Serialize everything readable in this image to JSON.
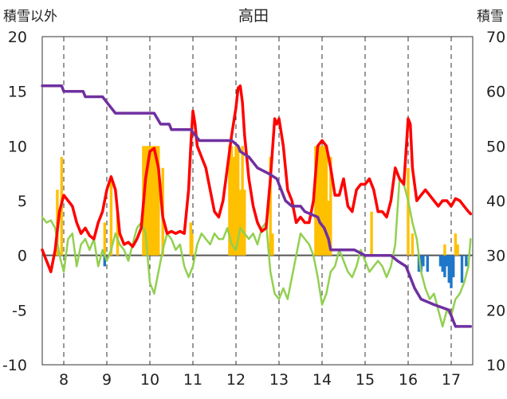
{
  "chart_data": {
    "type": "bar+line",
    "title": "高田",
    "left_axis_label": "積雪以外",
    "right_axis_label": "積雪",
    "left_ylim": [
      -10,
      20
    ],
    "left_ticks": [
      "-10",
      "-5",
      "0",
      "5",
      "10",
      "15",
      "20"
    ],
    "right_ylim": [
      10,
      70
    ],
    "right_ticks": [
      "10",
      "20",
      "30",
      "40",
      "50",
      "60",
      "70"
    ],
    "x_range": [
      7.5,
      17.5
    ],
    "x_ticks": [
      "8",
      "9",
      "10",
      "11",
      "12",
      "13",
      "14",
      "15",
      "16",
      "17"
    ],
    "grid": "vertical dashed at each day, horizontal reference at 0",
    "colors": {
      "snowfall_bar": "#FFC000",
      "snow_decrease_bar": "#1F77C8",
      "temp_max_line": "#FF0000",
      "temp_min_line": "#92D050",
      "snow_depth_line": "#7030A0"
    },
    "snowfall_bars": [
      {
        "x": 7.95,
        "v": 9
      },
      {
        "x": 7.85,
        "v": 6
      },
      {
        "x": 8.95,
        "v": 3
      },
      {
        "x": 9.1,
        "v": 7
      },
      {
        "x": 9.25,
        "v": 4
      },
      {
        "x": 9.85,
        "v": 10
      },
      {
        "x": 9.9,
        "v": 10
      },
      {
        "x": 9.95,
        "v": 10
      },
      {
        "x": 10.0,
        "v": 10
      },
      {
        "x": 10.05,
        "v": 10
      },
      {
        "x": 10.1,
        "v": 10
      },
      {
        "x": 10.15,
        "v": 10
      },
      {
        "x": 10.2,
        "v": 10
      },
      {
        "x": 10.3,
        "v": 8
      },
      {
        "x": 10.95,
        "v": 3
      },
      {
        "x": 10.98,
        "v": 2
      },
      {
        "x": 11.85,
        "v": 10
      },
      {
        "x": 11.9,
        "v": 10
      },
      {
        "x": 11.95,
        "v": 9
      },
      {
        "x": 12.0,
        "v": 10
      },
      {
        "x": 12.05,
        "v": 10
      },
      {
        "x": 12.1,
        "v": 6
      },
      {
        "x": 12.15,
        "v": 10
      },
      {
        "x": 12.2,
        "v": 6
      },
      {
        "x": 12.8,
        "v": 9
      },
      {
        "x": 12.85,
        "v": 2
      },
      {
        "x": 13.85,
        "v": 10
      },
      {
        "x": 13.9,
        "v": 10
      },
      {
        "x": 13.95,
        "v": 10
      },
      {
        "x": 14.0,
        "v": 10
      },
      {
        "x": 14.05,
        "v": 10
      },
      {
        "x": 14.1,
        "v": 10
      },
      {
        "x": 14.15,
        "v": 5
      },
      {
        "x": 14.2,
        "v": 9
      },
      {
        "x": 15.15,
        "v": 4
      },
      {
        "x": 16.0,
        "v": 8
      },
      {
        "x": 16.1,
        "v": 2
      },
      {
        "x": 16.85,
        "v": 1
      },
      {
        "x": 17.1,
        "v": 2
      },
      {
        "x": 17.15,
        "v": 1
      }
    ],
    "snow_decrease_bars": [
      {
        "x": 8.95,
        "v": -1
      },
      {
        "x": 16.25,
        "v": -1.5
      },
      {
        "x": 16.3,
        "v": -1.5
      },
      {
        "x": 16.35,
        "v": -1
      },
      {
        "x": 16.45,
        "v": -1.5
      },
      {
        "x": 16.75,
        "v": -1
      },
      {
        "x": 16.8,
        "v": -1.5
      },
      {
        "x": 16.85,
        "v": -2
      },
      {
        "x": 16.9,
        "v": -1
      },
      {
        "x": 16.95,
        "v": -2.5
      },
      {
        "x": 17.0,
        "v": -3
      },
      {
        "x": 17.05,
        "v": -2
      },
      {
        "x": 17.25,
        "v": -2.5
      },
      {
        "x": 17.35,
        "v": -1
      }
    ],
    "temp_max_series": [
      [
        7.5,
        0.5
      ],
      [
        7.6,
        -0.5
      ],
      [
        7.7,
        -1.5
      ],
      [
        7.8,
        0.5
      ],
      [
        7.9,
        4.0
      ],
      [
        8.0,
        5.5
      ],
      [
        8.1,
        5.0
      ],
      [
        8.2,
        4.5
      ],
      [
        8.3,
        3.0
      ],
      [
        8.4,
        2.0
      ],
      [
        8.5,
        2.5
      ],
      [
        8.6,
        1.8
      ],
      [
        8.7,
        1.5
      ],
      [
        8.8,
        3.0
      ],
      [
        8.9,
        4.0
      ],
      [
        9.0,
        6.0
      ],
      [
        9.1,
        7.2
      ],
      [
        9.2,
        6.0
      ],
      [
        9.3,
        2.0
      ],
      [
        9.4,
        1.0
      ],
      [
        9.5,
        1.2
      ],
      [
        9.6,
        0.8
      ],
      [
        9.7,
        1.5
      ],
      [
        9.8,
        2.5
      ],
      [
        9.9,
        7.0
      ],
      [
        10.0,
        9.5
      ],
      [
        10.1,
        9.8
      ],
      [
        10.2,
        8.0
      ],
      [
        10.3,
        3.5
      ],
      [
        10.4,
        2.0
      ],
      [
        10.5,
        2.2
      ],
      [
        10.6,
        2.0
      ],
      [
        10.7,
        2.2
      ],
      [
        10.8,
        2.0
      ],
      [
        10.9,
        6.0
      ],
      [
        10.95,
        10.0
      ],
      [
        11.0,
        13.2
      ],
      [
        11.05,
        12.0
      ],
      [
        11.1,
        10.0
      ],
      [
        11.2,
        9.0
      ],
      [
        11.3,
        8.0
      ],
      [
        11.4,
        6.0
      ],
      [
        11.5,
        4.0
      ],
      [
        11.6,
        3.5
      ],
      [
        11.7,
        5.0
      ],
      [
        11.8,
        8.0
      ],
      [
        11.9,
        11.0
      ],
      [
        12.0,
        13.5
      ],
      [
        12.05,
        15.3
      ],
      [
        12.1,
        15.5
      ],
      [
        12.15,
        14.0
      ],
      [
        12.2,
        11.0
      ],
      [
        12.3,
        7.0
      ],
      [
        12.4,
        4.5
      ],
      [
        12.5,
        3.0
      ],
      [
        12.6,
        2.2
      ],
      [
        12.7,
        2.5
      ],
      [
        12.8,
        7.0
      ],
      [
        12.9,
        12.5
      ],
      [
        12.95,
        12.0
      ],
      [
        13.0,
        12.5
      ],
      [
        13.1,
        10.0
      ],
      [
        13.2,
        6.0
      ],
      [
        13.3,
        5.0
      ],
      [
        13.4,
        3.0
      ],
      [
        13.5,
        3.5
      ],
      [
        13.6,
        3.0
      ],
      [
        13.7,
        3.0
      ],
      [
        13.8,
        5.0
      ],
      [
        13.9,
        10.0
      ],
      [
        14.0,
        10.5
      ],
      [
        14.1,
        10.0
      ],
      [
        14.2,
        8.0
      ],
      [
        14.3,
        5.5
      ],
      [
        14.4,
        5.5
      ],
      [
        14.5,
        7.0
      ],
      [
        14.6,
        4.5
      ],
      [
        14.7,
        4.0
      ],
      [
        14.8,
        6.0
      ],
      [
        14.9,
        6.5
      ],
      [
        15.0,
        6.5
      ],
      [
        15.1,
        7.0
      ],
      [
        15.2,
        6.0
      ],
      [
        15.3,
        4.0
      ],
      [
        15.4,
        4.0
      ],
      [
        15.5,
        3.5
      ],
      [
        15.6,
        5.0
      ],
      [
        15.7,
        8.0
      ],
      [
        15.8,
        7.0
      ],
      [
        15.9,
        6.5
      ],
      [
        16.0,
        12.5
      ],
      [
        16.05,
        12.0
      ],
      [
        16.1,
        8.0
      ],
      [
        16.2,
        5.0
      ],
      [
        16.3,
        5.5
      ],
      [
        16.4,
        6.0
      ],
      [
        16.5,
        5.5
      ],
      [
        16.6,
        5.0
      ],
      [
        16.7,
        4.5
      ],
      [
        16.8,
        5.0
      ],
      [
        16.9,
        5.0
      ],
      [
        17.0,
        4.5
      ],
      [
        17.1,
        5.2
      ],
      [
        17.2,
        5.0
      ],
      [
        17.3,
        4.5
      ],
      [
        17.4,
        4.0
      ],
      [
        17.45,
        3.8
      ]
    ],
    "temp_min_series": [
      [
        7.5,
        3.5
      ],
      [
        7.6,
        3.0
      ],
      [
        7.7,
        3.2
      ],
      [
        7.8,
        2.5
      ],
      [
        7.9,
        0.0
      ],
      [
        8.0,
        -1.5
      ],
      [
        8.1,
        1.5
      ],
      [
        8.2,
        2.0
      ],
      [
        8.3,
        -1.0
      ],
      [
        8.4,
        1.0
      ],
      [
        8.5,
        1.5
      ],
      [
        8.6,
        0.5
      ],
      [
        8.7,
        1.5
      ],
      [
        8.8,
        -1.0
      ],
      [
        8.9,
        0.5
      ],
      [
        9.0,
        -0.5
      ],
      [
        9.1,
        0.5
      ],
      [
        9.2,
        2.0
      ],
      [
        9.3,
        1.0
      ],
      [
        9.4,
        0.5
      ],
      [
        9.5,
        -0.5
      ],
      [
        9.6,
        1.0
      ],
      [
        9.7,
        2.5
      ],
      [
        9.8,
        3.0
      ],
      [
        9.9,
        2.0
      ],
      [
        10.0,
        -2.5
      ],
      [
        10.1,
        -3.5
      ],
      [
        10.2,
        -1.5
      ],
      [
        10.3,
        0.5
      ],
      [
        10.4,
        2.0
      ],
      [
        10.5,
        1.5
      ],
      [
        10.6,
        0.5
      ],
      [
        10.7,
        1.0
      ],
      [
        10.8,
        -1.0
      ],
      [
        10.9,
        -2.0
      ],
      [
        11.0,
        -1.0
      ],
      [
        11.1,
        1.0
      ],
      [
        11.2,
        2.0
      ],
      [
        11.3,
        1.5
      ],
      [
        11.4,
        1.0
      ],
      [
        11.5,
        2.0
      ],
      [
        11.6,
        1.5
      ],
      [
        11.7,
        1.5
      ],
      [
        11.8,
        2.5
      ],
      [
        11.9,
        1.0
      ],
      [
        12.0,
        0.5
      ],
      [
        12.1,
        2.5
      ],
      [
        12.2,
        2.0
      ],
      [
        12.3,
        1.5
      ],
      [
        12.4,
        2.0
      ],
      [
        12.5,
        1.0
      ],
      [
        12.6,
        2.5
      ],
      [
        12.7,
        3.0
      ],
      [
        12.8,
        -1.5
      ],
      [
        12.9,
        -3.5
      ],
      [
        13.0,
        -4.0
      ],
      [
        13.1,
        -3.0
      ],
      [
        13.2,
        -4.0
      ],
      [
        13.3,
        -2.0
      ],
      [
        13.4,
        0.0
      ],
      [
        13.5,
        2.0
      ],
      [
        13.6,
        1.5
      ],
      [
        13.7,
        1.0
      ],
      [
        13.8,
        0.0
      ],
      [
        13.9,
        -2.0
      ],
      [
        14.0,
        -4.5
      ],
      [
        14.1,
        -3.5
      ],
      [
        14.2,
        -1.5
      ],
      [
        14.3,
        -1.0
      ],
      [
        14.4,
        0.5
      ],
      [
        14.5,
        -0.5
      ],
      [
        14.6,
        -1.5
      ],
      [
        14.7,
        -2.0
      ],
      [
        14.8,
        -1.0
      ],
      [
        14.9,
        0.5
      ],
      [
        15.0,
        -0.5
      ],
      [
        15.1,
        -1.5
      ],
      [
        15.2,
        -1.0
      ],
      [
        15.3,
        -0.5
      ],
      [
        15.4,
        -1.0
      ],
      [
        15.5,
        -2.0
      ],
      [
        15.6,
        -1.0
      ],
      [
        15.7,
        1.0
      ],
      [
        15.8,
        7.0
      ],
      [
        15.9,
        6.5
      ],
      [
        16.0,
        5.0
      ],
      [
        16.1,
        3.0
      ],
      [
        16.2,
        1.5
      ],
      [
        16.3,
        -1.5
      ],
      [
        16.4,
        -3.0
      ],
      [
        16.5,
        -4.0
      ],
      [
        16.6,
        -3.5
      ],
      [
        16.7,
        -5.0
      ],
      [
        16.8,
        -6.5
      ],
      [
        16.9,
        -5.0
      ],
      [
        17.0,
        -5.5
      ],
      [
        17.1,
        -4.0
      ],
      [
        17.2,
        -3.5
      ],
      [
        17.3,
        -2.5
      ],
      [
        17.4,
        -1.0
      ],
      [
        17.45,
        1.5
      ]
    ],
    "snow_depth_series": [
      [
        7.5,
        61
      ],
      [
        7.95,
        61
      ],
      [
        8.0,
        60
      ],
      [
        8.45,
        60
      ],
      [
        8.5,
        59
      ],
      [
        8.9,
        59
      ],
      [
        9.0,
        58
      ],
      [
        9.1,
        57
      ],
      [
        9.2,
        56
      ],
      [
        9.45,
        56
      ],
      [
        9.5,
        56
      ],
      [
        10.1,
        56
      ],
      [
        10.25,
        54
      ],
      [
        10.45,
        54
      ],
      [
        10.5,
        53
      ],
      [
        10.95,
        53
      ],
      [
        11.05,
        52
      ],
      [
        11.15,
        51
      ],
      [
        11.9,
        51
      ],
      [
        12.05,
        50
      ],
      [
        12.1,
        49
      ],
      [
        12.3,
        48
      ],
      [
        12.5,
        46
      ],
      [
        12.75,
        45
      ],
      [
        12.95,
        44
      ],
      [
        13.05,
        42
      ],
      [
        13.15,
        40
      ],
      [
        13.3,
        39
      ],
      [
        13.5,
        39
      ],
      [
        13.6,
        38
      ],
      [
        13.9,
        37
      ],
      [
        13.95,
        36
      ],
      [
        14.05,
        35
      ],
      [
        14.15,
        33
      ],
      [
        14.2,
        31
      ],
      [
        14.75,
        31
      ],
      [
        15.0,
        30
      ],
      [
        15.6,
        30
      ],
      [
        15.75,
        29
      ],
      [
        15.95,
        28
      ],
      [
        16.05,
        26
      ],
      [
        16.15,
        24
      ],
      [
        16.3,
        22
      ],
      [
        16.6,
        21
      ],
      [
        16.95,
        20
      ],
      [
        17.0,
        19
      ],
      [
        17.05,
        18
      ],
      [
        17.1,
        17
      ],
      [
        17.45,
        17
      ]
    ]
  }
}
